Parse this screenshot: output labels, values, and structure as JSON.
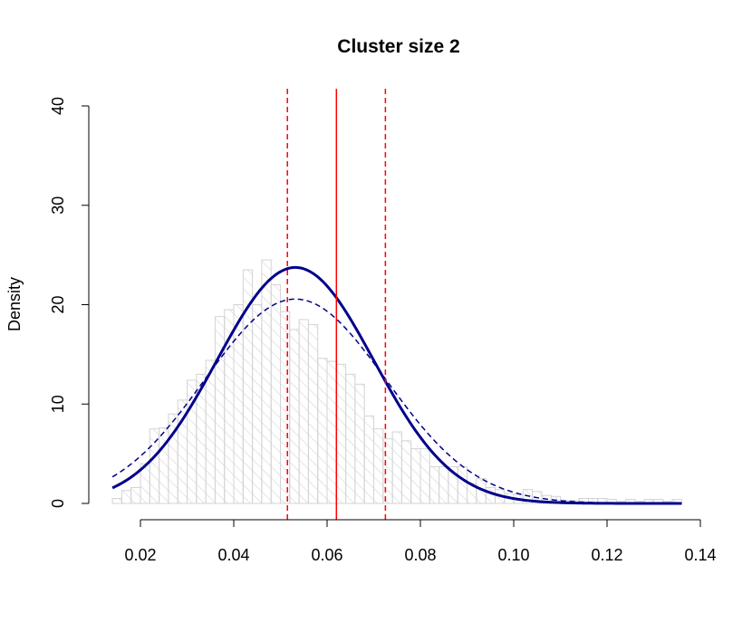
{
  "chart_data": {
    "type": "histogram",
    "title": "Cluster size 2",
    "xlabel": "",
    "ylabel": "Density",
    "xlim": [
      0.014,
      0.136
    ],
    "ylim": [
      0,
      40
    ],
    "x_ticks": [
      0.02,
      0.04,
      0.06,
      0.08,
      0.1,
      0.12,
      0.14
    ],
    "x_tick_labels": [
      "0.02",
      "0.04",
      "0.06",
      "0.08",
      "0.10",
      "0.12",
      "0.14"
    ],
    "y_ticks": [
      0,
      10,
      20,
      30,
      40
    ],
    "y_tick_labels": [
      "0",
      "10",
      "20",
      "30",
      "40"
    ],
    "grid": false,
    "histogram": {
      "bin_start": 0.014,
      "bin_width": 0.002,
      "fill": "#ffffff",
      "hatch_color": "#d3d3d3",
      "densities": [
        0.5,
        1.3,
        1.6,
        4.0,
        7.5,
        7.6,
        9.0,
        10.4,
        12.4,
        13.0,
        14.4,
        18.8,
        19.5,
        20.0,
        23.5,
        20.0,
        24.5,
        22.0,
        19.3,
        17.5,
        18.5,
        18.0,
        14.6,
        14.3,
        14.0,
        13.0,
        12.0,
        8.8,
        7.5,
        6.5,
        7.2,
        6.3,
        5.5,
        5.5,
        3.7,
        3.7,
        3.7,
        3.7,
        2.0,
        2.5,
        1.6,
        1.4,
        1.0,
        0.9,
        1.4,
        1.2,
        0.8,
        0.7,
        0.3,
        0.3,
        0.5,
        0.5,
        0.5,
        0.4,
        0.2,
        0.4,
        0.2,
        0.4,
        0.4,
        0.2,
        0.4
      ]
    },
    "series": [
      {
        "style": "solid",
        "color": "#00008b",
        "distribution": "normal",
        "mean": 0.0532,
        "sd": 0.0168
      },
      {
        "style": "dashed",
        "color": "#00008b",
        "distribution": "normal",
        "mean": 0.0532,
        "sd": 0.0194
      }
    ],
    "vlines": [
      {
        "x": 0.0515,
        "style": "dashed",
        "color": "#ff0000"
      },
      {
        "x": 0.062,
        "style": "solid",
        "color": "#ff0000"
      },
      {
        "x": 0.0725,
        "style": "dashed",
        "color": "#ff0000"
      }
    ]
  }
}
